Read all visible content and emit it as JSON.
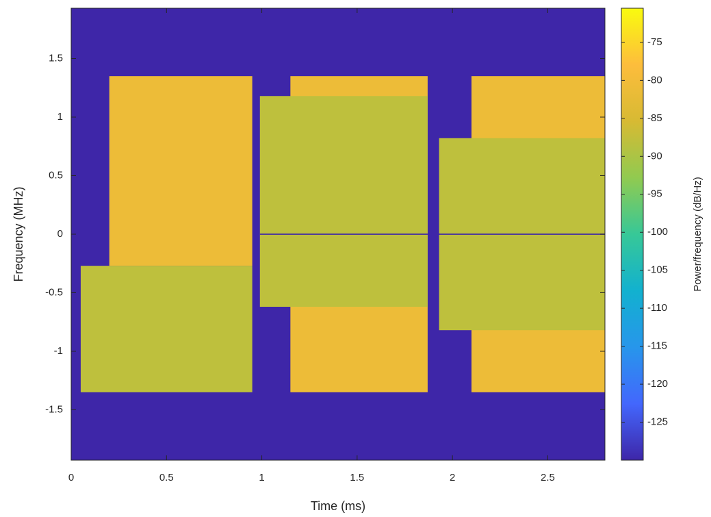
{
  "chart_data": {
    "type": "spectrogram",
    "xlabel": "Time (ms)",
    "ylabel": "Frequency (MHz)",
    "colorbar_label": "Power/frequency (dB/Hz)",
    "colormap": "parula",
    "xlim": [
      0,
      2.8
    ],
    "ylim": [
      -1.93,
      1.93
    ],
    "clim": [
      -130,
      -70.5
    ],
    "xticks": [
      0,
      0.5,
      1,
      1.5,
      2,
      2.5
    ],
    "yticks": [
      -1.5,
      -1,
      -0.5,
      0,
      0.5,
      1,
      1.5
    ],
    "cticks": [
      -125,
      -120,
      -115,
      -110,
      -105,
      -100,
      -95,
      -90,
      -85,
      -80,
      -75
    ],
    "background": -130,
    "regions": [
      {
        "t": [
          0.2,
          0.95
        ],
        "f": [
          -0.27,
          1.35
        ],
        "power": -81
      },
      {
        "t": [
          0.05,
          0.95
        ],
        "f": [
          -1.35,
          -0.27
        ],
        "power": -88
      },
      {
        "t": [
          1.15,
          1.87
        ],
        "f": [
          -1.35,
          1.35
        ],
        "power": -81
      },
      {
        "t": [
          0.99,
          1.87
        ],
        "f": [
          -0.62,
          1.18
        ],
        "power": -88
      },
      {
        "t": [
          2.1,
          2.8
        ],
        "f": [
          -1.35,
          1.35
        ],
        "power": -81
      },
      {
        "t": [
          1.93,
          2.8
        ],
        "f": [
          -0.82,
          0.82
        ],
        "power": -88
      },
      {
        "t": [
          0.99,
          2.8
        ],
        "f": [
          -0.005,
          0.005
        ],
        "power": -130
      }
    ]
  }
}
